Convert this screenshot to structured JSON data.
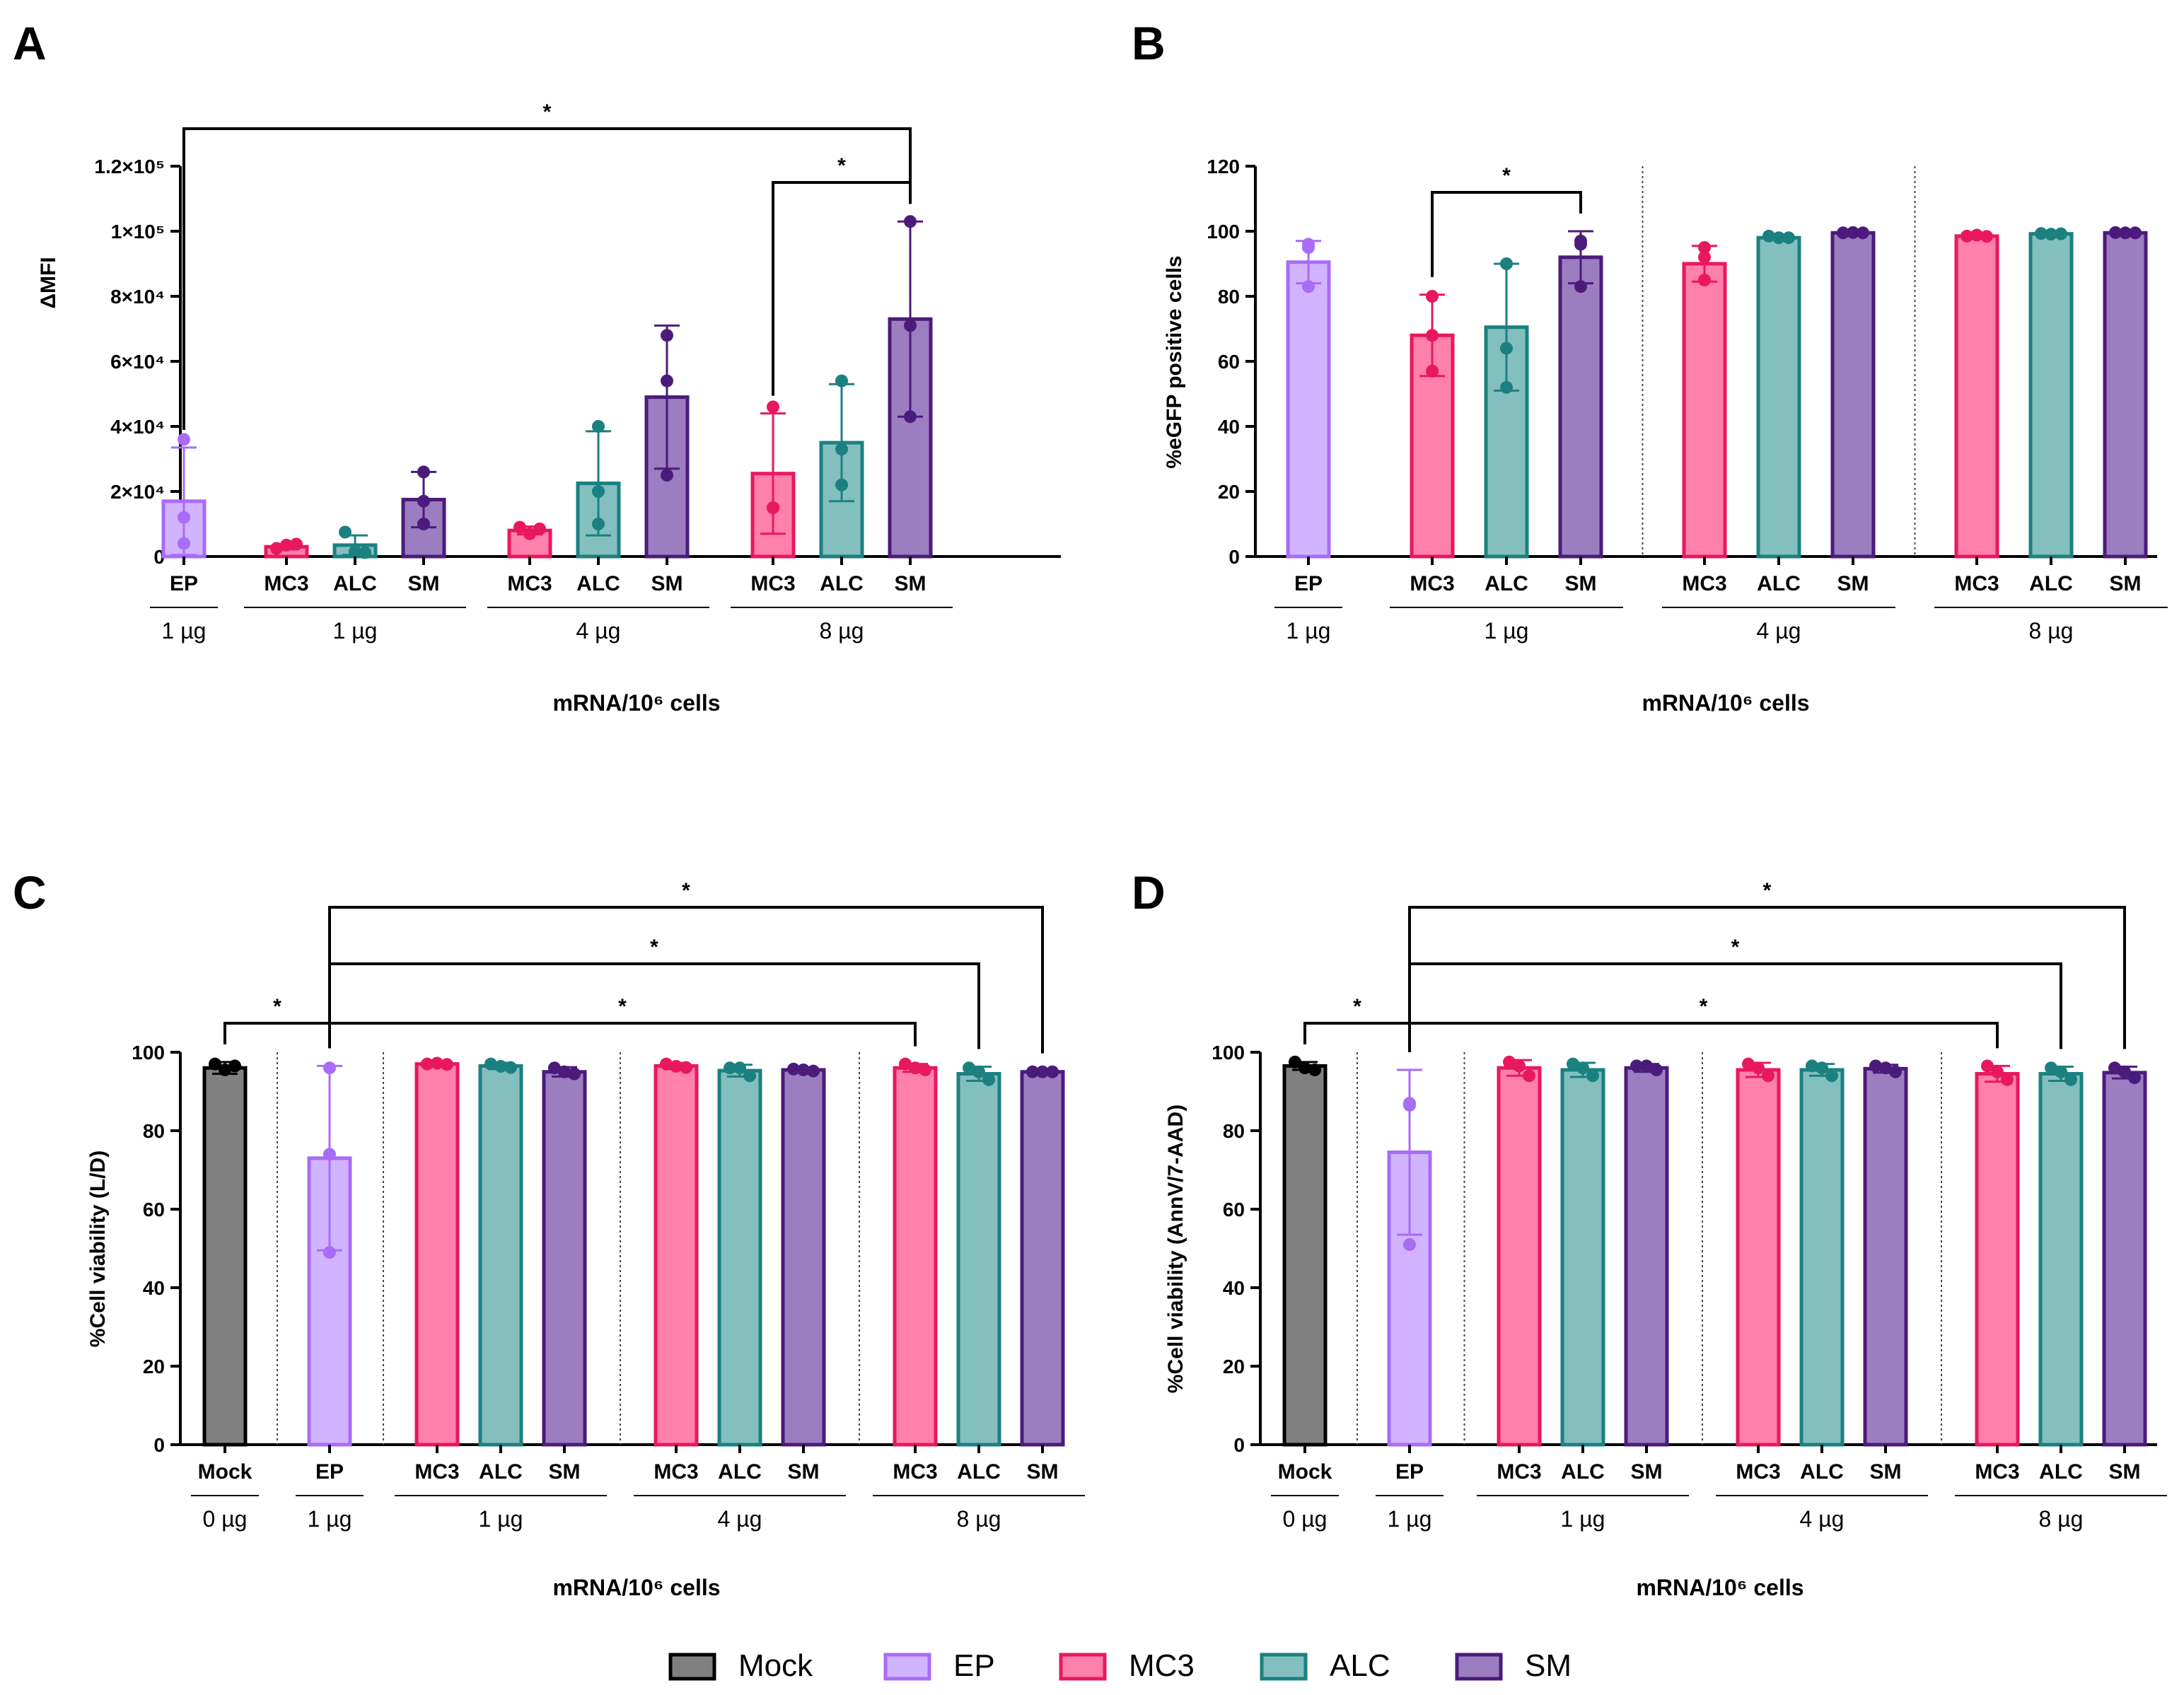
{
  "colors": {
    "Mock": {
      "fill": "#808080",
      "stroke": "#000000",
      "dot": "#000000"
    },
    "EP": {
      "fill": "#D1B3FF",
      "stroke": "#A86CF6",
      "dot": "#A86CF6"
    },
    "MC3": {
      "fill": "#FF80AA",
      "stroke": "#E8185E",
      "dot": "#E8185E"
    },
    "ALC": {
      "fill": "#83BFBE",
      "stroke": "#1B8080",
      "dot": "#1B8080"
    },
    "SM": {
      "fill": "#9C7DC0",
      "stroke": "#4B1B7C",
      "dot": "#4B1B7C"
    }
  },
  "legend": [
    {
      "key": "Mock",
      "label": "Mock"
    },
    {
      "key": "EP",
      "label": "EP"
    },
    {
      "key": "MC3",
      "label": "MC3"
    },
    {
      "key": "ALC",
      "label": "ALC"
    },
    {
      "key": "SM",
      "label": "SM"
    }
  ],
  "chart_data": [
    {
      "panel": "A",
      "type": "bar",
      "title": "",
      "ylabel": "ΔMFI",
      "xlabel": "mRNA/10⁶ cells",
      "ylim": [
        0,
        120000
      ],
      "yticks": [
        "0",
        "2×10⁴",
        "4×10⁴",
        "6×10⁴",
        "8×10⁴",
        "1×10⁵",
        "1.2×10⁵"
      ],
      "bars": [
        {
          "label": "EP",
          "group": "EP",
          "value": 17000,
          "error": 16500,
          "points": [
            36000,
            12000,
            4000
          ]
        },
        {
          "label": "MC3",
          "group": "MC3",
          "value": 3000,
          "error": 800,
          "points": [
            2500,
            3500,
            3800
          ]
        },
        {
          "label": "ALC",
          "group": "ALC",
          "value": 3500,
          "error": 3000,
          "points": [
            7500,
            1500,
            1200
          ]
        },
        {
          "label": "SM",
          "group": "SM",
          "value": 17500,
          "error": 8500,
          "points": [
            26000,
            17000,
            10000
          ]
        },
        {
          "label": "MC3",
          "group": "MC3",
          "value": 8000,
          "error": 1200,
          "points": [
            9000,
            7000,
            8500
          ]
        },
        {
          "label": "ALC",
          "group": "ALC",
          "value": 22500,
          "error": 16000,
          "points": [
            40000,
            20000,
            10000
          ]
        },
        {
          "label": "SM",
          "group": "SM",
          "value": 49000,
          "error": 22000,
          "points": [
            68000,
            54000,
            25000
          ]
        },
        {
          "label": "MC3",
          "group": "MC3",
          "value": 25500,
          "error": 18500,
          "points": [
            46000,
            15000,
            15000
          ]
        },
        {
          "label": "ALC",
          "group": "ALC",
          "value": 35000,
          "error": 18000,
          "points": [
            54000,
            33000,
            22000
          ]
        },
        {
          "label": "SM",
          "group": "SM",
          "value": 73000,
          "error": 30000,
          "points": [
            103000,
            71000,
            43000
          ]
        }
      ],
      "dose_groups": [
        {
          "from": 0,
          "to": 0,
          "label": "1 µg"
        },
        {
          "from": 1,
          "to": 3,
          "label": "1 µg"
        },
        {
          "from": 4,
          "to": 6,
          "label": "4 µg"
        },
        {
          "from": 7,
          "to": 9,
          "label": "8 µg"
        }
      ],
      "separators": [],
      "significance": [
        {
          "from": 7,
          "to": 9,
          "tier": 0,
          "label": "*"
        },
        {
          "from": 0,
          "to": 9,
          "tier": 1,
          "label": "*"
        }
      ]
    },
    {
      "panel": "B",
      "type": "bar",
      "title": "",
      "ylabel": "%eGFP positive cells",
      "xlabel": "mRNA/10⁶ cells",
      "ylim": [
        0,
        120
      ],
      "yticks": [
        "0",
        "20",
        "40",
        "60",
        "80",
        "100",
        "120"
      ],
      "bars": [
        {
          "label": "EP",
          "group": "EP",
          "value": 90.5,
          "error": 6.5,
          "points": [
            96,
            95,
            83
          ]
        },
        {
          "label": "MC3",
          "group": "MC3",
          "value": 68,
          "error": 12.5,
          "points": [
            68,
            57,
            80
          ]
        },
        {
          "label": "ALC",
          "group": "ALC",
          "value": 70.5,
          "error": 19.5,
          "points": [
            90,
            64,
            52
          ]
        },
        {
          "label": "SM",
          "group": "SM",
          "value": 92,
          "error": 8,
          "points": [
            97,
            96,
            83
          ]
        },
        {
          "label": "MC3",
          "group": "MC3",
          "value": 90,
          "error": 5.5,
          "points": [
            95,
            92,
            85
          ]
        },
        {
          "label": "ALC",
          "group": "ALC",
          "value": 98,
          "error": 0.5,
          "points": [
            98.5,
            98,
            98
          ]
        },
        {
          "label": "SM",
          "group": "SM",
          "value": 99.5,
          "error": 0.3,
          "points": [
            99.5,
            99.6,
            99.5
          ]
        },
        {
          "label": "MC3",
          "group": "MC3",
          "value": 98.5,
          "error": 0.4,
          "points": [
            98.5,
            98.8,
            98.4
          ]
        },
        {
          "label": "ALC",
          "group": "ALC",
          "value": 99.2,
          "error": 0.3,
          "points": [
            99.3,
            99.1,
            99.2
          ]
        },
        {
          "label": "SM",
          "group": "SM",
          "value": 99.5,
          "error": 0.2,
          "points": [
            99.6,
            99.5,
            99.5
          ]
        }
      ],
      "dose_groups": [
        {
          "from": 0,
          "to": 0,
          "label": "1 µg"
        },
        {
          "from": 1,
          "to": 3,
          "label": "1 µg"
        },
        {
          "from": 4,
          "to": 6,
          "label": "4 µg"
        },
        {
          "from": 7,
          "to": 9,
          "label": "8 µg"
        }
      ],
      "separators": [
        3.5,
        6.5
      ],
      "significance": [
        {
          "from": 1,
          "to": 3,
          "tier": 0,
          "label": "*"
        }
      ]
    },
    {
      "panel": "C",
      "type": "bar",
      "title": "",
      "ylabel": "%Cell viability (L/D)",
      "xlabel": "mRNA/10⁶ cells",
      "ylim": [
        0,
        100
      ],
      "yticks": [
        "0",
        "20",
        "40",
        "60",
        "80",
        "100"
      ],
      "bars": [
        {
          "label": "Mock",
          "group": "Mock",
          "value": 96,
          "error": 1.5,
          "points": [
            97,
            95.5,
            96.5
          ]
        },
        {
          "label": "EP",
          "group": "EP",
          "value": 73,
          "error": 23.5,
          "points": [
            96,
            74,
            49
          ]
        },
        {
          "label": "MC3",
          "group": "MC3",
          "value": 97,
          "error": 0.5,
          "points": [
            97,
            97.2,
            96.9
          ]
        },
        {
          "label": "ALC",
          "group": "ALC",
          "value": 96.5,
          "error": 0.8,
          "points": [
            97,
            96.4,
            96.1
          ]
        },
        {
          "label": "SM",
          "group": "SM",
          "value": 95,
          "error": 1.2,
          "points": [
            96,
            95,
            94.5
          ]
        },
        {
          "label": "MC3",
          "group": "MC3",
          "value": 96.5,
          "error": 0.8,
          "points": [
            97,
            96.4,
            96.1
          ]
        },
        {
          "label": "ALC",
          "group": "ALC",
          "value": 95.3,
          "error": 1.5,
          "points": [
            96,
            96,
            94
          ]
        },
        {
          "label": "SM",
          "group": "SM",
          "value": 95.5,
          "error": 0.6,
          "points": [
            95.7,
            95.5,
            95.2
          ]
        },
        {
          "label": "MC3",
          "group": "MC3",
          "value": 96,
          "error": 1.0,
          "points": [
            97,
            96,
            95.5
          ]
        },
        {
          "label": "ALC",
          "group": "ALC",
          "value": 94.5,
          "error": 1.8,
          "points": [
            96,
            95,
            93
          ]
        },
        {
          "label": "SM",
          "group": "SM",
          "value": 95,
          "error": 0.2,
          "points": [
            95,
            95,
            95
          ]
        }
      ],
      "dose_groups": [
        {
          "from": 0,
          "to": 0,
          "label": "0 µg"
        },
        {
          "from": 1,
          "to": 1,
          "label": "1 µg"
        },
        {
          "from": 2,
          "to": 4,
          "label": "1 µg"
        },
        {
          "from": 5,
          "to": 7,
          "label": "4 µg"
        },
        {
          "from": 8,
          "to": 10,
          "label": "8 µg"
        }
      ],
      "separators": [
        0.5,
        1.5,
        4.5,
        7.5
      ],
      "significance": [
        {
          "from": 0,
          "to": 1,
          "tier": 0,
          "label": "*"
        },
        {
          "from": 1,
          "to": 8,
          "tier": 0,
          "label": "*"
        },
        {
          "from": 1,
          "to": 9,
          "tier": 1,
          "label": "*"
        },
        {
          "from": 1,
          "to": 10,
          "tier": 2,
          "label": "*"
        }
      ]
    },
    {
      "panel": "D",
      "type": "bar",
      "title": "",
      "ylabel": "%Cell viability (AnnV/7-AAD)",
      "xlabel": "mRNA/10⁶ cells",
      "ylim": [
        0,
        100
      ],
      "yticks": [
        "0",
        "20",
        "40",
        "60",
        "80",
        "100"
      ],
      "bars": [
        {
          "label": "Mock",
          "group": "Mock",
          "value": 96.5,
          "error": 1.0,
          "points": [
            97.5,
            96,
            95.5
          ]
        },
        {
          "label": "EP",
          "group": "EP",
          "value": 74.5,
          "error": 21,
          "points": [
            87,
            86.5,
            51
          ]
        },
        {
          "label": "MC3",
          "group": "MC3",
          "value": 96,
          "error": 2.0,
          "points": [
            97.5,
            96.5,
            94
          ]
        },
        {
          "label": "ALC",
          "group": "ALC",
          "value": 95.5,
          "error": 1.8,
          "points": [
            97,
            96,
            94
          ]
        },
        {
          "label": "SM",
          "group": "SM",
          "value": 96,
          "error": 1.0,
          "points": [
            96.5,
            96.5,
            95.5
          ]
        },
        {
          "label": "MC3",
          "group": "MC3",
          "value": 95.5,
          "error": 1.8,
          "points": [
            97,
            96,
            94
          ]
        },
        {
          "label": "ALC",
          "group": "ALC",
          "value": 95.5,
          "error": 1.5,
          "points": [
            96.5,
            96,
            94
          ]
        },
        {
          "label": "SM",
          "group": "SM",
          "value": 95.8,
          "error": 1.0,
          "points": [
            96.5,
            96,
            95
          ]
        },
        {
          "label": "MC3",
          "group": "MC3",
          "value": 94.5,
          "error": 2.0,
          "points": [
            96.5,
            95,
            93
          ]
        },
        {
          "label": "ALC",
          "group": "ALC",
          "value": 94.5,
          "error": 1.8,
          "points": [
            96,
            95,
            93
          ]
        },
        {
          "label": "SM",
          "group": "SM",
          "value": 94.8,
          "error": 1.5,
          "points": [
            96,
            95,
            93.5
          ]
        }
      ],
      "dose_groups": [
        {
          "from": 0,
          "to": 0,
          "label": "0 µg"
        },
        {
          "from": 1,
          "to": 1,
          "label": "1 µg"
        },
        {
          "from": 2,
          "to": 4,
          "label": "1 µg"
        },
        {
          "from": 5,
          "to": 7,
          "label": "4 µg"
        },
        {
          "from": 8,
          "to": 10,
          "label": "8 µg"
        }
      ],
      "separators": [
        0.5,
        1.5,
        4.5,
        7.5
      ],
      "significance": [
        {
          "from": 0,
          "to": 1,
          "tier": 0,
          "label": "*"
        },
        {
          "from": 1,
          "to": 8,
          "tier": 0,
          "label": "*"
        },
        {
          "from": 1,
          "to": 9,
          "tier": 1,
          "label": "*"
        },
        {
          "from": 1,
          "to": 10,
          "tier": 2,
          "label": "*"
        }
      ]
    }
  ]
}
